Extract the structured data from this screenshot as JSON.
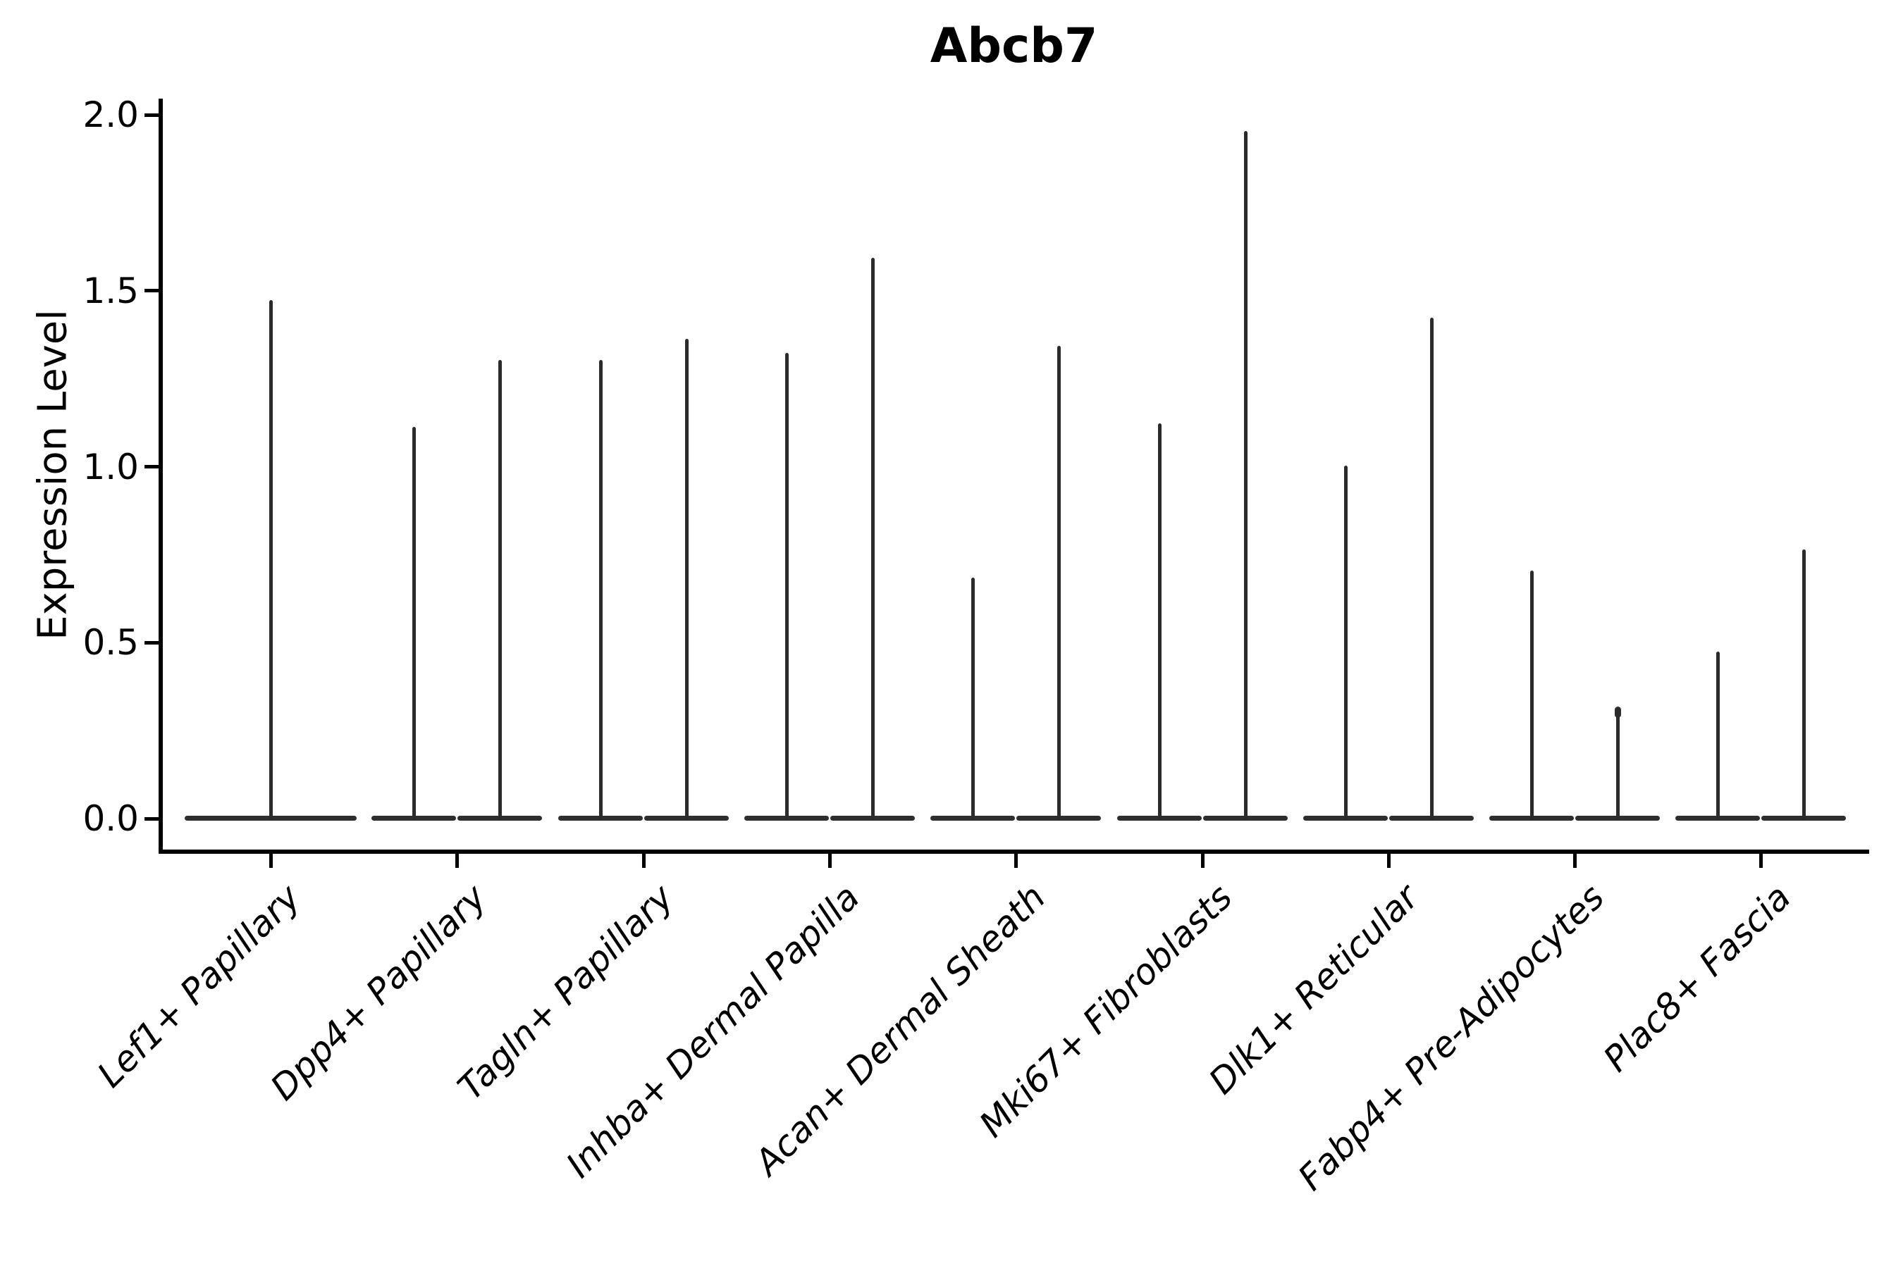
{
  "page": {
    "background": "#ffffff"
  },
  "chart_data": {
    "type": "violin",
    "title": "Abcb7",
    "xlabel": "",
    "ylabel": "Expression Level",
    "ylim": [
      -0.09,
      2.05
    ],
    "yticks": [
      "0.0",
      "0.5",
      "1.0",
      "1.5",
      "2.0"
    ],
    "ytick_values": [
      0.0,
      0.5,
      1.0,
      1.5,
      2.0
    ],
    "grid": false,
    "legend": null,
    "axis_color": "#000000",
    "violin_color": "#2b2b2b",
    "note": "Violin plot; every violin is collapsed into a flat base at expression 0 with a thin spike rising to the maximum expression value. The first category shows a single wide violin; all other categories show two adjacent violins.",
    "categories": [
      "Lef1+ Papillary",
      "Dpp4+ Papillary",
      "Tagln+ Papillary",
      "Inhba+ Dermal Papilla",
      "Acan+ Dermal Sheath",
      "Mki67+ Fibroblasts",
      "Dlk1+ Reticular",
      "Fabp4+ Pre-Adipocytes",
      "Plac8+ Fascia"
    ],
    "series": [
      {
        "category": "Lef1+ Papillary",
        "violins": [
          {
            "max": 1.47
          }
        ]
      },
      {
        "category": "Dpp4+ Papillary",
        "violins": [
          {
            "max": 1.11
          },
          {
            "max": 1.3
          }
        ]
      },
      {
        "category": "Tagln+ Papillary",
        "violins": [
          {
            "max": 1.3
          },
          {
            "max": 1.36
          }
        ]
      },
      {
        "category": "Inhba+ Dermal Papilla",
        "violins": [
          {
            "max": 1.32
          },
          {
            "max": 1.59
          }
        ]
      },
      {
        "category": "Acan+ Dermal Sheath",
        "violins": [
          {
            "max": 0.68
          },
          {
            "max": 1.34
          }
        ]
      },
      {
        "category": "Mki67+ Fibroblasts",
        "violins": [
          {
            "max": 1.12
          },
          {
            "max": 1.95
          }
        ]
      },
      {
        "category": "Dlk1+ Reticular",
        "violins": [
          {
            "max": 1.0
          },
          {
            "max": 1.42
          }
        ]
      },
      {
        "category": "Fabp4+ Pre-Adipocytes",
        "violins": [
          {
            "max": 0.7
          },
          {
            "max": 0.31,
            "tip": "blob"
          }
        ]
      },
      {
        "category": "Plac8+ Fascia",
        "violins": [
          {
            "max": 0.47
          },
          {
            "max": 0.76
          }
        ]
      }
    ]
  }
}
